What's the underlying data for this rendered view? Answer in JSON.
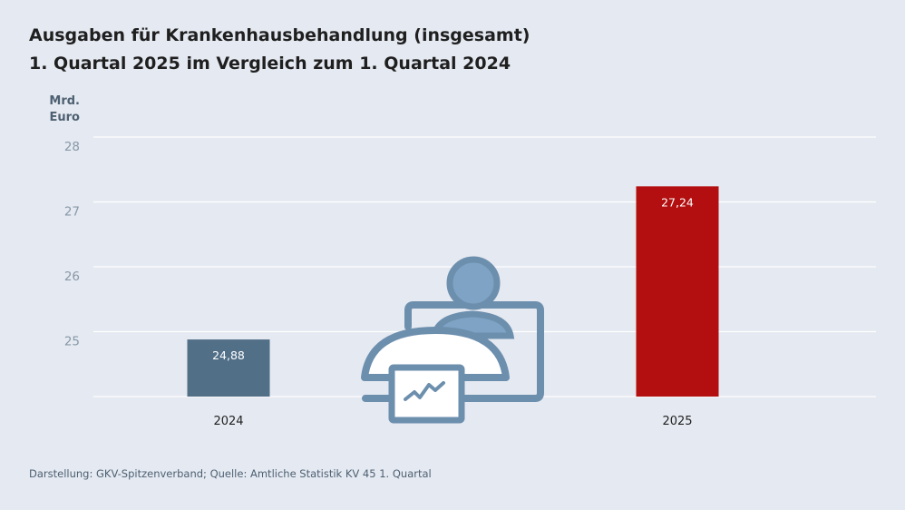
{
  "title": {
    "line1": "Ausgaben für Krankenhausbehandlung (insgesamt)",
    "line2": "1. Quartal 2025 im Vergleich zum 1. Quartal 2024"
  },
  "unit_label": {
    "line1": "Mrd.",
    "line2": "Euro"
  },
  "footer": "Darstellung: GKV-Spitzenverband; Quelle: Amtliche Statistik KV 45 1. Quartal",
  "colors": {
    "bar_2024": "#526f88",
    "bar_2025": "#b30f10",
    "grid": "#ffffff",
    "icon_stroke": "#6d8fae",
    "icon_fill": "#7ea3c4",
    "icon_screen": "#ffffff"
  },
  "illustration": {
    "icon": "person-at-desk-with-trend-chart-icon"
  },
  "chart_data": {
    "type": "bar",
    "categories": [
      "2024",
      "2025"
    ],
    "values": [
      24.88,
      27.24
    ],
    "data_labels": [
      "24,88",
      "27,24"
    ],
    "ylim": [
      24,
      28
    ],
    "yticks": [
      25,
      26,
      27,
      28
    ],
    "ytick_labels": [
      "25",
      "26",
      "27",
      "28"
    ],
    "ylabel": "Mrd. Euro",
    "grid": true
  }
}
